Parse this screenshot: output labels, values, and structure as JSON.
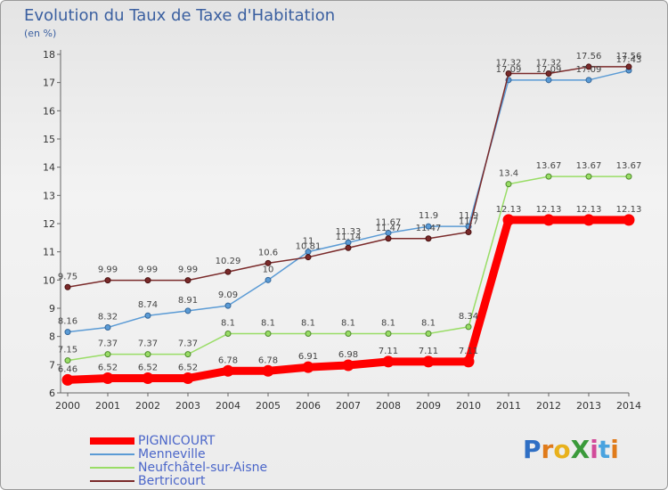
{
  "title": "Evolution du Taux de Taxe d'Habitation",
  "unit": "(en %)",
  "logo": {
    "text": "ProXiti",
    "colors": [
      "#2f6fc4",
      "#e07b1a",
      "#e8b11c",
      "#3a9a3a",
      "#d24b9a",
      "#4aa3df",
      "#e07b1a"
    ]
  },
  "chart_data": {
    "type": "line",
    "x": [
      2000,
      2001,
      2002,
      2003,
      2004,
      2005,
      2006,
      2007,
      2008,
      2009,
      2010,
      2011,
      2012,
      2013,
      2014
    ],
    "ylim": [
      6,
      18
    ],
    "yticks": [
      6,
      7,
      8,
      9,
      10,
      11,
      12,
      13,
      14,
      15,
      16,
      17,
      18
    ],
    "grid": false,
    "legend_position": "bottom-left",
    "series": [
      {
        "name": "PIGNICOURT",
        "color": "#ff0000",
        "width": 9,
        "labels": [
          "6.46",
          "6.52",
          "6.52",
          "6.52",
          "6.78",
          "6.78",
          "6.91",
          "6.98",
          "7.11",
          "7.11",
          "7.11",
          "12.13",
          "12.13",
          "12.13",
          "12.13"
        ],
        "values": [
          6.46,
          6.52,
          6.52,
          6.52,
          6.78,
          6.78,
          6.91,
          6.98,
          7.11,
          7.11,
          7.11,
          12.13,
          12.13,
          12.13,
          12.13
        ]
      },
      {
        "name": "Menneville",
        "color": "#5b9bd5",
        "width": 1.5,
        "labels": [
          "8.16",
          "8.32",
          "8.74",
          "8.91",
          "9.09",
          "10",
          "11",
          "11.33",
          "11.67",
          "11.9",
          "11.9",
          "17.09",
          "17.09",
          "17.09",
          "17.43"
        ],
        "values": [
          8.16,
          8.32,
          8.74,
          8.91,
          9.09,
          10,
          11,
          11.33,
          11.67,
          11.9,
          11.9,
          17.09,
          17.09,
          17.09,
          17.43
        ]
      },
      {
        "name": "Neufchâtel-sur-Aisne",
        "color": "#99dd66",
        "width": 1.5,
        "labels": [
          "7.15",
          "7.37",
          "7.37",
          "7.37",
          "8.1",
          "8.1",
          "8.1",
          "8.1",
          "8.1",
          "8.1",
          "8.34",
          "13.4",
          "13.67",
          "13.67",
          "13.67"
        ],
        "values": [
          7.15,
          7.37,
          7.37,
          7.37,
          8.1,
          8.1,
          8.1,
          8.1,
          8.1,
          8.1,
          8.34,
          13.4,
          13.67,
          13.67,
          13.67
        ]
      },
      {
        "name": "Bertricourt",
        "color": "#7a2a2a",
        "width": 1.5,
        "labels": [
          "9.75",
          "9.99",
          "9.99",
          "9.99",
          "10.29",
          "10.6",
          "10.81",
          "11.14",
          "11.47",
          "11.47",
          "11.7",
          "17.32",
          "17.32",
          "17.56",
          "17.56"
        ],
        "values": [
          9.75,
          9.99,
          9.99,
          9.99,
          10.29,
          10.6,
          10.81,
          11.14,
          11.47,
          11.47,
          11.7,
          17.32,
          17.32,
          17.56,
          17.56
        ]
      }
    ]
  }
}
